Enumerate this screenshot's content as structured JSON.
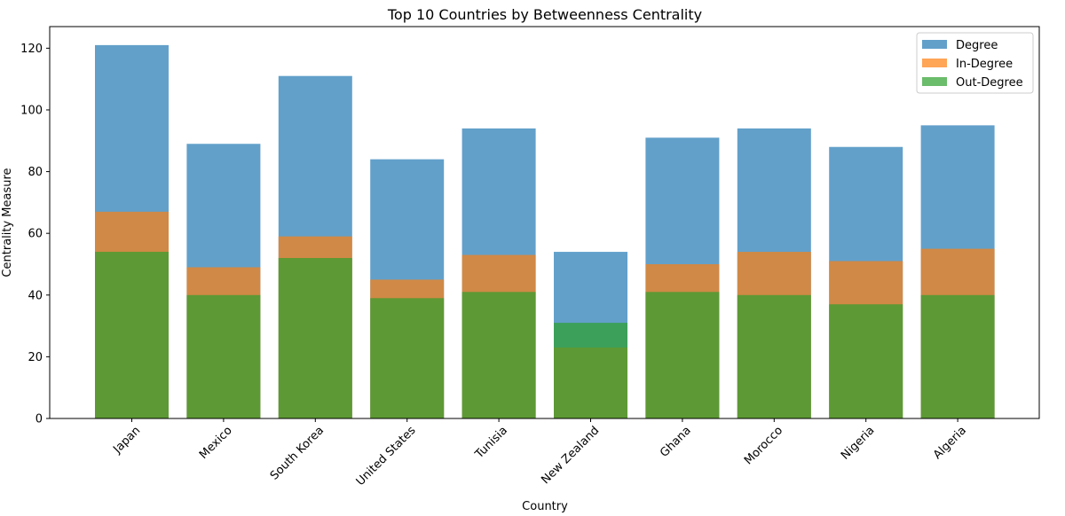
{
  "chart_data": {
    "type": "bar",
    "title": "Top 10 Countries by Betweenness Centrality",
    "xlabel": "Country",
    "ylabel": "Centrality Measure",
    "categories": [
      "Japan",
      "Mexico",
      "South Korea",
      "United States",
      "Tunisia",
      "New Zealand",
      "Ghana",
      "Morocco",
      "Nigeria",
      "Algeria"
    ],
    "series": [
      {
        "name": "Degree",
        "color": "#1f77b4",
        "values": [
          121,
          89,
          111,
          84,
          94,
          54,
          91,
          94,
          88,
          95
        ]
      },
      {
        "name": "In-Degree",
        "color": "#ff7f0e",
        "values": [
          67,
          49,
          59,
          45,
          53,
          23,
          50,
          54,
          51,
          55
        ]
      },
      {
        "name": "Out-Degree",
        "color": "#2ca02c",
        "values": [
          54,
          40,
          52,
          39,
          41,
          31,
          41,
          40,
          37,
          40
        ]
      }
    ],
    "bar_opacity": 0.7,
    "ylim": [
      0,
      127
    ],
    "yticks": [
      0,
      20,
      40,
      60,
      80,
      100,
      120
    ],
    "grid": false,
    "legend_position": "top-right"
  }
}
